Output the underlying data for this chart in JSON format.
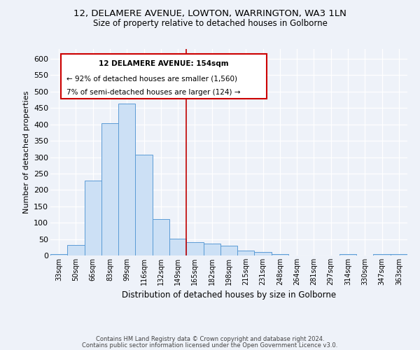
{
  "title1": "12, DELAMERE AVENUE, LOWTON, WARRINGTON, WA3 1LN",
  "title2": "Size of property relative to detached houses in Golborne",
  "xlabel": "Distribution of detached houses by size in Golborne",
  "ylabel": "Number of detached properties",
  "categories": [
    "33sqm",
    "50sqm",
    "66sqm",
    "83sqm",
    "99sqm",
    "116sqm",
    "132sqm",
    "149sqm",
    "165sqm",
    "182sqm",
    "198sqm",
    "215sqm",
    "231sqm",
    "248sqm",
    "264sqm",
    "281sqm",
    "297sqm",
    "314sqm",
    "330sqm",
    "347sqm",
    "363sqm"
  ],
  "values": [
    5,
    32,
    228,
    403,
    463,
    307,
    112,
    52,
    40,
    37,
    30,
    14,
    10,
    5,
    0,
    0,
    0,
    5,
    0,
    5,
    5
  ],
  "bar_color": "#cce0f5",
  "bar_edge_color": "#5b9bd5",
  "vline_color": "#c00000",
  "vline_x_index": 7.5,
  "annotation_box_edge": "#cc0000",
  "property_label": "12 DELAMERE AVENUE: 154sqm",
  "annotation_line1": "← 92% of detached houses are smaller (1,560)",
  "annotation_line2": "7% of semi-detached houses are larger (124) →",
  "ylim": [
    0,
    630
  ],
  "yticks": [
    0,
    50,
    100,
    150,
    200,
    250,
    300,
    350,
    400,
    450,
    500,
    550,
    600
  ],
  "bg_color": "#eef2f9",
  "footnote1": "Contains HM Land Registry data © Crown copyright and database right 2024.",
  "footnote2": "Contains public sector information licensed under the Open Government Licence v3.0."
}
